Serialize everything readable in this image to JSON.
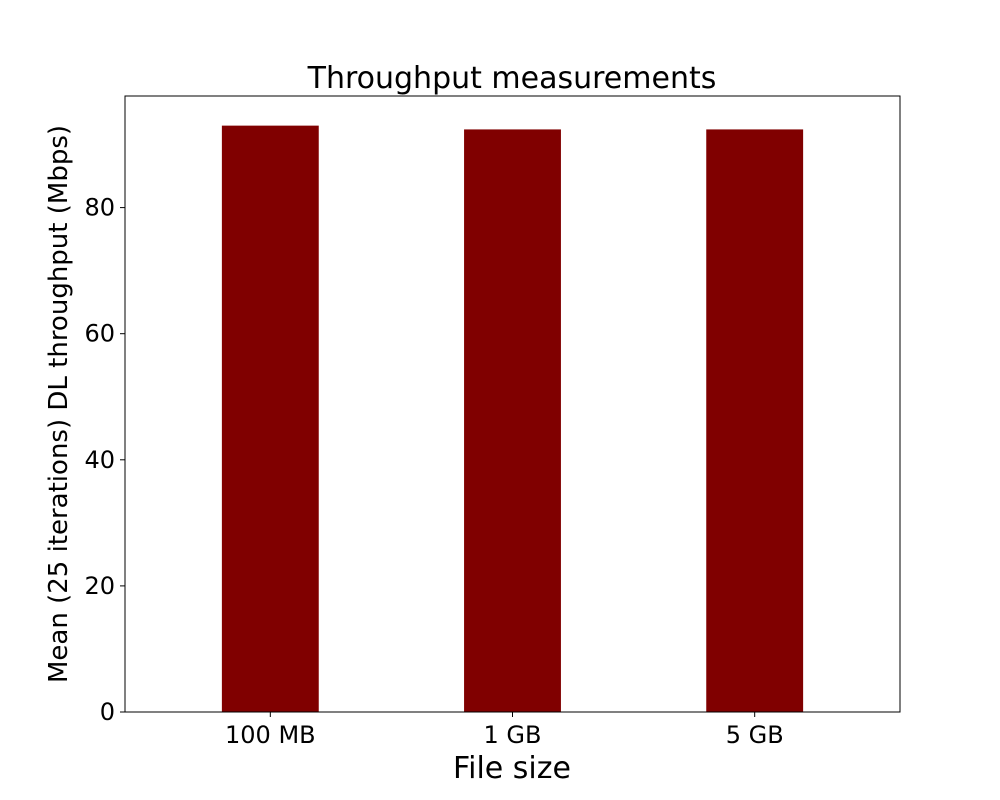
{
  "chart_data": {
    "type": "bar",
    "title": "Throughput measurements",
    "xlabel": "File size",
    "ylabel": "Mean (25 iterations) DL throughput (Mbps)",
    "categories": [
      "100 MB",
      "1 GB",
      "5 GB"
    ],
    "values": [
      93.0,
      92.4,
      92.4
    ],
    "ylim": [
      0,
      97.7
    ],
    "yticks": [
      0,
      20,
      40,
      60,
      80
    ],
    "bar_color": "#800000",
    "grid": false,
    "legend": "none"
  }
}
